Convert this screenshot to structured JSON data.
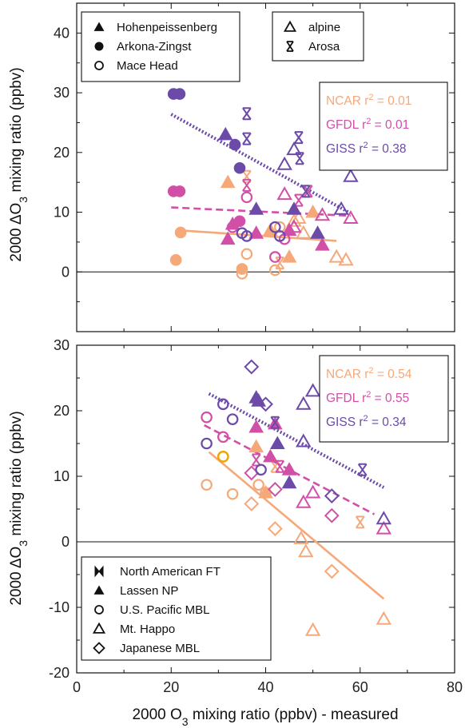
{
  "colors": {
    "NCAR": "#f5a878",
    "GFDL": "#d24fa8",
    "GISS": "#6b4aa8"
  },
  "chart_data": [
    {
      "type": "scatter",
      "title": "",
      "xlabel": "2000 O3 mixing ratio (ppbv) - measured",
      "ylabel": "2000 ΔO3 mixing ratio (ppbv)",
      "xlim": [
        0,
        80
      ],
      "ylim": [
        -10,
        45
      ],
      "yticks": [
        "0",
        "10",
        "20",
        "30",
        "40"
      ],
      "legend_sites": [
        "Hohenpeissenberg",
        "Arkona-Zingst",
        "Mace Head"
      ],
      "legend_types": [
        "alpine",
        "Arosa"
      ],
      "stats": [
        {
          "model": "NCAR",
          "label": "NCAR  r",
          "value": "= 0.01"
        },
        {
          "model": "GFDL",
          "label": "GFDL  r",
          "value": "= 0.01"
        },
        {
          "model": "GISS",
          "label": "GISS  r",
          "value": "= 0.38"
        }
      ],
      "fits": [
        {
          "model": "NCAR",
          "x": [
            21,
            55
          ],
          "y": [
            7,
            5.2
          ],
          "style": "solid"
        },
        {
          "model": "GFDL",
          "x": [
            20,
            58
          ],
          "y": [
            10.8,
            9.4
          ],
          "style": "dashed"
        },
        {
          "model": "GISS",
          "x": [
            20,
            58
          ],
          "y": [
            26.4,
            9.8
          ],
          "style": "dotted"
        }
      ],
      "series": [
        {
          "model": "NCAR",
          "points": [
            [
              21,
              2,
              "filled-circle"
            ],
            [
              22,
              6.6,
              "filled-circle"
            ],
            [
              35,
              0.5,
              "filled-circle"
            ],
            [
              32,
              15,
              "filled-triangle"
            ],
            [
              41,
              7,
              "filled-triangle"
            ],
            [
              45,
              2.5,
              "filled-triangle"
            ],
            [
              50,
              10,
              "filled-triangle"
            ],
            [
              35,
              -0.3,
              "open-circle"
            ],
            [
              36,
              3,
              "open-circle"
            ],
            [
              42,
              0.3,
              "open-circle"
            ],
            [
              43,
              7.5,
              "open-circle"
            ],
            [
              46,
              8.5,
              "open-triangle"
            ],
            [
              48,
              6.5,
              "open-triangle"
            ],
            [
              47,
              9,
              "open-triangle"
            ],
            [
              55,
              2.5,
              "open-triangle"
            ],
            [
              57,
              2,
              "open-triangle"
            ],
            [
              36,
              16,
              "open-bowtie"
            ],
            [
              43,
              1.5,
              "open-bowtie"
            ]
          ]
        },
        {
          "model": "GFDL",
          "points": [
            [
              20.5,
              13.5,
              "filled-circle"
            ],
            [
              21.8,
              13.5,
              "filled-circle"
            ],
            [
              34.5,
              8.5,
              "filled-circle"
            ],
            [
              32,
              5.5,
              "filled-triangle"
            ],
            [
              33,
              8,
              "filled-triangle"
            ],
            [
              38,
              6.5,
              "filled-triangle"
            ],
            [
              45,
              7,
              "filled-triangle"
            ],
            [
              52,
              4.5,
              "filled-triangle"
            ],
            [
              33,
              7.5,
              "open-circle"
            ],
            [
              36,
              12.5,
              "open-circle"
            ],
            [
              42,
              2.5,
              "open-circle"
            ],
            [
              44,
              5.5,
              "open-circle"
            ],
            [
              44,
              13,
              "open-triangle"
            ],
            [
              46,
              7.5,
              "open-triangle"
            ],
            [
              52,
              9.5,
              "open-triangle"
            ],
            [
              58,
              9,
              "open-triangle"
            ],
            [
              36,
              14.5,
              "open-bowtie"
            ],
            [
              47,
              12,
              "open-bowtie"
            ],
            [
              49,
              13.5,
              "open-bowtie"
            ]
          ]
        },
        {
          "model": "GISS",
          "points": [
            [
              20.5,
              29.8,
              "filled-circle"
            ],
            [
              21.8,
              29.8,
              "filled-circle"
            ],
            [
              33.5,
              21.3,
              "filled-circle"
            ],
            [
              34.5,
              17.4,
              "filled-circle"
            ],
            [
              31.5,
              23,
              "filled-triangle"
            ],
            [
              38,
              10.5,
              "filled-triangle"
            ],
            [
              46,
              10.5,
              "filled-triangle"
            ],
            [
              51,
              6.5,
              "filled-triangle"
            ],
            [
              35,
              6.5,
              "open-circle"
            ],
            [
              36,
              6,
              "open-circle"
            ],
            [
              42,
              7.5,
              "open-circle"
            ],
            [
              43,
              6,
              "open-circle"
            ],
            [
              44,
              18,
              "open-triangle"
            ],
            [
              46,
              20.5,
              "open-triangle"
            ],
            [
              56,
              10.5,
              "open-triangle"
            ],
            [
              58,
              16,
              "open-triangle"
            ],
            [
              36,
              26.5,
              "open-bowtie"
            ],
            [
              36,
              22.3,
              "open-bowtie"
            ],
            [
              47,
              22.5,
              "open-bowtie"
            ],
            [
              47.2,
              19,
              "open-bowtie"
            ],
            [
              48.5,
              13.5,
              "open-bowtie"
            ]
          ]
        }
      ]
    },
    {
      "type": "scatter",
      "title": "",
      "xlabel": "2000 O3 mixing ratio (ppbv) - measured",
      "ylabel": "2000 ΔO3 mixing ratio (ppbv)",
      "xlim": [
        0,
        80
      ],
      "ylim": [
        -20,
        30
      ],
      "xticks": [
        "0",
        "20",
        "40",
        "60",
        "80"
      ],
      "yticks": [
        "-20",
        "-10",
        "0",
        "10",
        "20",
        "30"
      ],
      "legend_sites": [
        "North American FT",
        "Lassen NP",
        "U.S. Pacific MBL",
        "Mt. Happo",
        "Japanese MBL"
      ],
      "stats": [
        {
          "model": "NCAR",
          "label": "NCAR  r",
          "value": "= 0.54"
        },
        {
          "model": "GFDL",
          "label": "GFDL  r",
          "value": "= 0.55"
        },
        {
          "model": "GISS",
          "label": "GISS  r",
          "value": "= 0.34"
        }
      ],
      "fits": [
        {
          "model": "NCAR",
          "x": [
            28,
            65
          ],
          "y": [
            13.7,
            -8.7
          ],
          "style": "solid"
        },
        {
          "model": "GFDL",
          "x": [
            27,
            63
          ],
          "y": [
            17.8,
            4.2
          ],
          "style": "dashed"
        },
        {
          "model": "GISS",
          "x": [
            28,
            65
          ],
          "y": [
            22.6,
            8.3
          ],
          "style": "dotted"
        }
      ],
      "series": [
        {
          "model": "NCAR",
          "points": [
            [
              27.5,
              8.7,
              "open-circle"
            ],
            [
              33,
              7.3,
              "open-circle"
            ],
            [
              31,
              13,
              "open-circle-gold"
            ],
            [
              38.5,
              8.7,
              "open-circle"
            ],
            [
              40,
              7.5,
              "open-circle"
            ],
            [
              38,
              14.5,
              "filled-triangle"
            ],
            [
              40,
              7.5,
              "filled-triangle"
            ],
            [
              37,
              5.8,
              "open-diamond"
            ],
            [
              42,
              2,
              "open-diamond"
            ],
            [
              54,
              -4.5,
              "open-diamond"
            ],
            [
              47.5,
              0.5,
              "open-triangle"
            ],
            [
              48.5,
              -1.5,
              "open-triangle"
            ],
            [
              50,
              -13.5,
              "open-triangle"
            ],
            [
              65,
              -11.8,
              "open-triangle"
            ],
            [
              60,
              3,
              "open-bowtie"
            ],
            [
              42,
              11.5,
              "open-bowtie"
            ]
          ]
        },
        {
          "model": "GFDL",
          "points": [
            [
              27.5,
              19,
              "open-circle"
            ],
            [
              31,
              16,
              "open-circle"
            ],
            [
              37,
              10.5,
              "open-diamond"
            ],
            [
              42,
              8,
              "open-diamond"
            ],
            [
              54,
              4,
              "open-diamond"
            ],
            [
              38,
              17.5,
              "filled-triangle"
            ],
            [
              42,
              18,
              "filled-triangle"
            ],
            [
              45,
              11,
              "filled-triangle"
            ],
            [
              41,
              13,
              "filled-triangle"
            ],
            [
              48,
              6,
              "open-triangle"
            ],
            [
              50,
              7.5,
              "open-triangle"
            ],
            [
              65,
              2,
              "open-triangle"
            ],
            [
              38,
              12.5,
              "open-bowtie"
            ],
            [
              43,
              11.5,
              "open-bowtie"
            ]
          ]
        },
        {
          "model": "GISS",
          "points": [
            [
              27.5,
              15,
              "open-circle"
            ],
            [
              31,
              21,
              "open-circle"
            ],
            [
              33,
              18.7,
              "open-circle"
            ],
            [
              39,
              11,
              "open-circle"
            ],
            [
              38,
              22,
              "filled-triangle"
            ],
            [
              38.5,
              21.5,
              "filled-triangle"
            ],
            [
              42.5,
              15,
              "filled-triangle"
            ],
            [
              45,
              9,
              "filled-triangle"
            ],
            [
              37,
              26.7,
              "open-diamond"
            ],
            [
              40,
              21,
              "open-diamond"
            ],
            [
              54,
              7,
              "open-diamond"
            ],
            [
              48,
              21,
              "open-triangle"
            ],
            [
              50,
              23,
              "open-triangle"
            ],
            [
              48,
              15.3,
              "open-triangle"
            ],
            [
              65,
              3.5,
              "open-triangle"
            ],
            [
              42,
              18.2,
              "open-bowtie"
            ],
            [
              60.5,
              11,
              "open-bowtie"
            ]
          ]
        }
      ]
    }
  ]
}
